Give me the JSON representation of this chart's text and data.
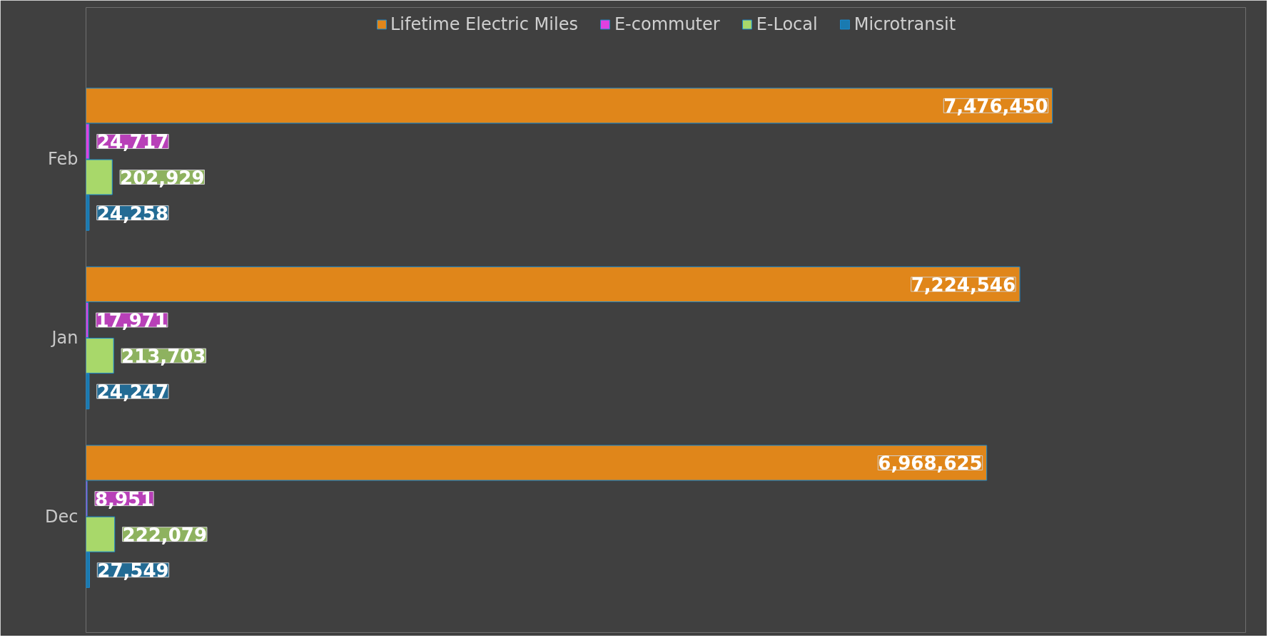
{
  "chart_data": {
    "type": "bar",
    "orientation": "horizontal",
    "categories": [
      "Feb",
      "Jan",
      "Dec"
    ],
    "legend": "top",
    "grid": false,
    "tick_labels": "y",
    "series": [
      {
        "name": "Lifetime Electric Miles",
        "color": "#e0861a",
        "values": [
          7476450,
          7224546,
          6968625
        ],
        "value_labels": [
          "7,476,450",
          "7,224,546",
          "6,968,625"
        ]
      },
      {
        "name": "E-commuter",
        "color": "#e040e0",
        "values": [
          24717,
          17971,
          8951
        ],
        "value_labels": [
          "24,717",
          "17,971",
          "8,951"
        ]
      },
      {
        "name": "E-Local",
        "color": "#a8d86a",
        "values": [
          202929,
          213703,
          222079
        ],
        "value_labels": [
          "202,929",
          "213,703",
          "222,079"
        ]
      },
      {
        "name": "Microtransit",
        "color": "#1a7ab0",
        "values": [
          24258,
          24247,
          27549
        ],
        "value_labels": [
          "24,258",
          "24,247",
          "27,549"
        ]
      }
    ]
  }
}
